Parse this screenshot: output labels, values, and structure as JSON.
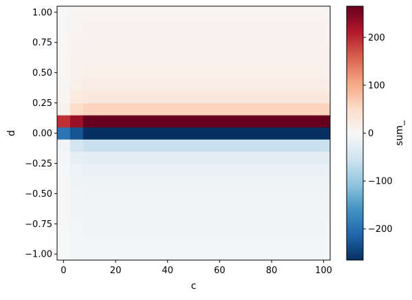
{
  "chart_data": {
    "type": "heatmap",
    "title": "",
    "xlabel": "c",
    "ylabel": "d",
    "xlim": [
      -2.5,
      102.5
    ],
    "ylim": [
      -1.05,
      1.05
    ],
    "x_ticks": [
      0,
      20,
      40,
      60,
      80,
      100
    ],
    "x_tick_labels": [
      "0",
      "20",
      "40",
      "60",
      "80",
      "100"
    ],
    "y_ticks": [
      -1.0,
      -0.75,
      -0.5,
      -0.25,
      0.0,
      0.25,
      0.5,
      0.75,
      1.0
    ],
    "y_tick_labels": [
      "−1.00",
      "−0.75",
      "−0.50",
      "−0.25",
      "0.00",
      "0.25",
      "0.50",
      "0.75",
      "1.00"
    ],
    "x_cell_edges": [
      -2.5,
      2.5,
      7.5,
      12.5,
      102.5
    ],
    "d_rows": [
      -1.0,
      -0.9,
      -0.8,
      -0.7,
      -0.6,
      -0.5,
      -0.4,
      -0.3,
      -0.2,
      -0.1,
      0.0,
      0.1,
      0.2,
      0.3,
      0.4,
      0.5,
      0.6,
      0.7,
      0.8,
      0.9,
      1.0
    ],
    "values": [
      [
        -1,
        -5,
        -5,
        -5
      ],
      [
        -1,
        -5,
        -6,
        -6
      ],
      [
        -1,
        -6,
        -7,
        -7
      ],
      [
        -2,
        -7,
        -8,
        -8
      ],
      [
        -2,
        -8,
        -9,
        -9
      ],
      [
        -2,
        -10,
        -11,
        -11
      ],
      [
        -2,
        -12,
        -14,
        -14
      ],
      [
        -3,
        -16,
        -19,
        -19
      ],
      [
        -5,
        -25,
        -28,
        -28
      ],
      [
        -10,
        -50,
        -60,
        -60
      ],
      [
        -195,
        -230,
        -265,
        -265
      ],
      [
        195,
        230,
        265,
        265
      ],
      [
        10,
        50,
        60,
        60
      ],
      [
        5,
        25,
        28,
        28
      ],
      [
        3,
        16,
        19,
        19
      ],
      [
        2,
        12,
        14,
        14
      ],
      [
        2,
        10,
        11,
        11
      ],
      [
        2,
        8,
        9,
        9
      ],
      [
        2,
        7,
        8,
        8
      ],
      [
        1,
        6,
        7,
        7
      ],
      [
        1,
        5,
        5,
        5
      ]
    ],
    "colorbar": {
      "label": "sum_",
      "vmin": -265,
      "vmax": 265,
      "ticks": [
        -200,
        -100,
        0,
        100,
        200
      ],
      "tick_labels": [
        "−200",
        "−100",
        "0",
        "100",
        "200"
      ],
      "colormap": "RdBu_r",
      "colors": [
        "#053061",
        "#2166ac",
        "#4393c3",
        "#92c5de",
        "#d1e5f0",
        "#f7f7f7",
        "#fddbc7",
        "#f4a582",
        "#d6604d",
        "#b2182b",
        "#67001f"
      ]
    }
  }
}
